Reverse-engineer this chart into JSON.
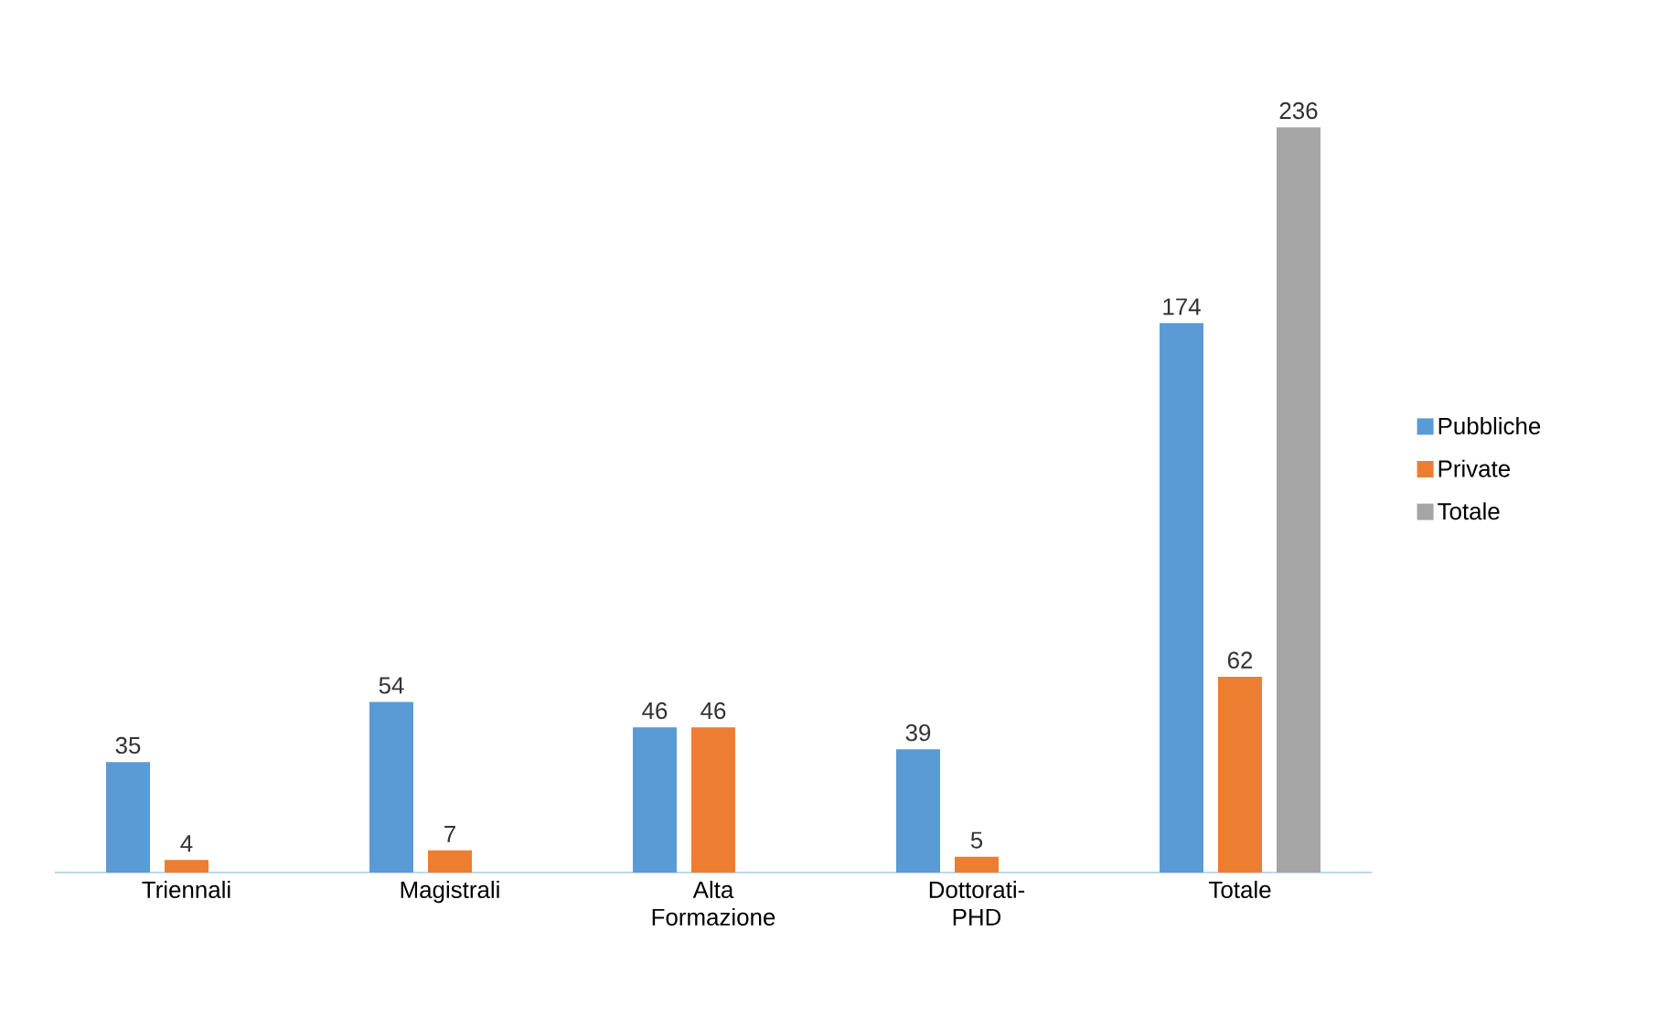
{
  "chart_data": {
    "type": "bar",
    "categories": [
      "Triennali",
      "Magistrali",
      "Alta Formazione",
      "Dottorati-PHD",
      "Totale"
    ],
    "series": [
      {
        "name": "Pubbliche",
        "color": "#5b9bd5",
        "values": [
          35,
          54,
          46,
          39,
          174
        ]
      },
      {
        "name": "Private",
        "color": "#ed7d31",
        "values": [
          4,
          7,
          46,
          5,
          62
        ]
      },
      {
        "name": "Totale",
        "color": "#a5a5a5",
        "values": [
          null,
          null,
          null,
          null,
          236
        ]
      }
    ],
    "data_labels": true,
    "legend": "right"
  }
}
